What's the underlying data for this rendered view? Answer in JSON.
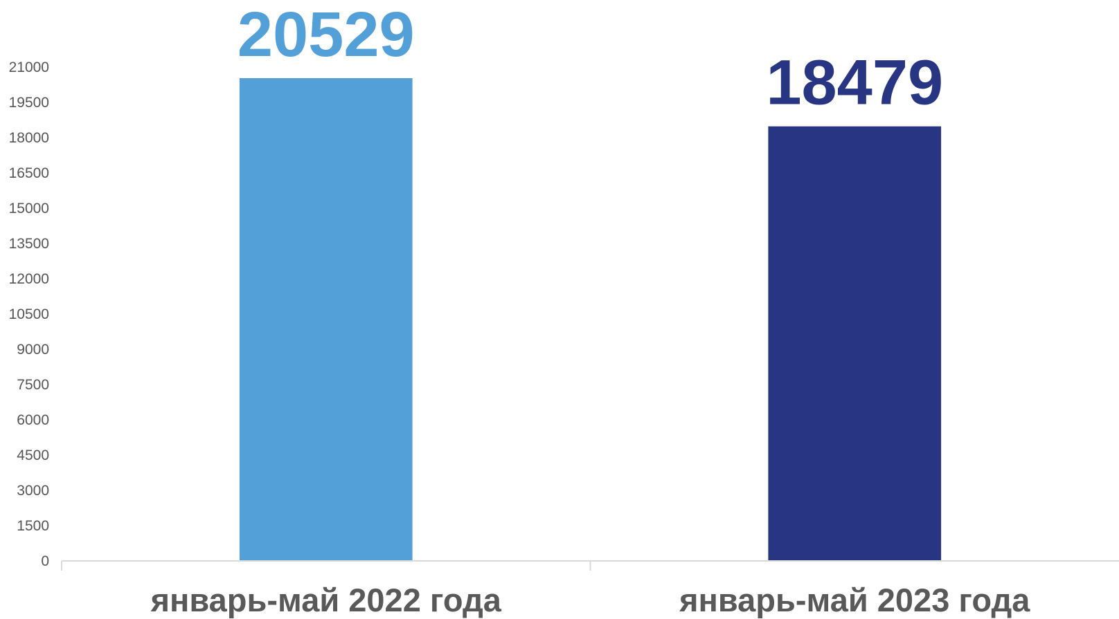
{
  "chart_data": {
    "type": "bar",
    "categories": [
      "январь-май 2022 года",
      "январь-май 2023 года"
    ],
    "values": [
      20529,
      18479
    ],
    "data_labels": [
      "20529",
      "18479"
    ],
    "bar_colors": [
      "#539FD8",
      "#283582"
    ],
    "ylim": [
      0,
      21000
    ],
    "y_ticks": [
      0,
      1500,
      3000,
      4500,
      6000,
      7500,
      9000,
      10500,
      12000,
      13500,
      15000,
      16500,
      18000,
      19500,
      21000
    ],
    "y_tick_labels": [
      "0",
      "1500",
      "3000",
      "4500",
      "6000",
      "7500",
      "9000",
      "10500",
      "12000",
      "13500",
      "15000",
      "16500",
      "18000",
      "19500",
      "21000"
    ],
    "title": "",
    "xlabel": "",
    "ylabel": "",
    "grid": false,
    "legend": "none",
    "colors": {
      "axis": "#d9d9d9",
      "tick_text": "#555555",
      "category_text": "#595959"
    }
  }
}
